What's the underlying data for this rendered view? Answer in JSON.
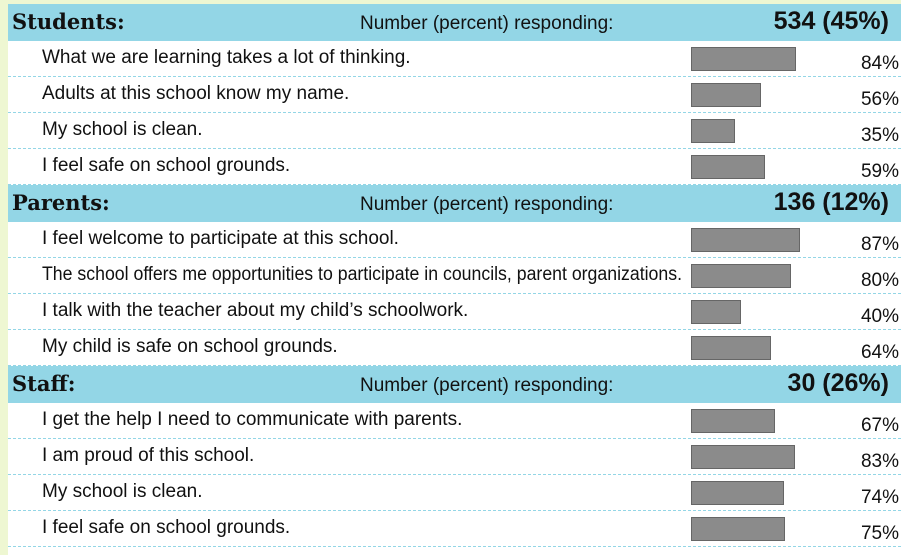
{
  "sections": [
    {
      "title": "Students:",
      "responding_label": "Number (percent) responding:",
      "responding": "534 (45%)",
      "items": [
        {
          "text": "What we are learning takes a lot of thinking.",
          "value": 84,
          "value_label": "84%"
        },
        {
          "text": "Adults at this school know my name.",
          "value": 56,
          "value_label": "56%"
        },
        {
          "text": "My school is clean.",
          "value": 35,
          "value_label": "35%"
        },
        {
          "text": "I feel safe on school grounds.",
          "value": 59,
          "value_label": "59%"
        }
      ]
    },
    {
      "title": "Parents:",
      "responding_label": "Number (percent) responding:",
      "responding": "136 (12%)",
      "items": [
        {
          "text": "I feel welcome to participate at this school.",
          "value": 87,
          "value_label": "87%"
        },
        {
          "text": "The school offers me opportunities to participate in councils, parent organizations.",
          "value": 80,
          "value_label": "80%"
        },
        {
          "text": "I talk with the teacher about my child’s schoolwork.",
          "value": 40,
          "value_label": "40%"
        },
        {
          "text": "My child is safe on school grounds.",
          "value": 64,
          "value_label": "64%"
        }
      ]
    },
    {
      "title": "Staff:",
      "responding_label": "Number (percent) responding:",
      "responding": "30 (26%)",
      "items": [
        {
          "text": "I get the help I need to communicate with parents.",
          "value": 67,
          "value_label": "67%"
        },
        {
          "text": "I am proud of this school.",
          "value": 83,
          "value_label": "83%"
        },
        {
          "text": "My school is clean.",
          "value": 74,
          "value_label": "74%"
        },
        {
          "text": "I feel safe on school grounds.",
          "value": 75,
          "value_label": "75%"
        }
      ]
    }
  ],
  "bar_color": "#8b8b8b"
}
